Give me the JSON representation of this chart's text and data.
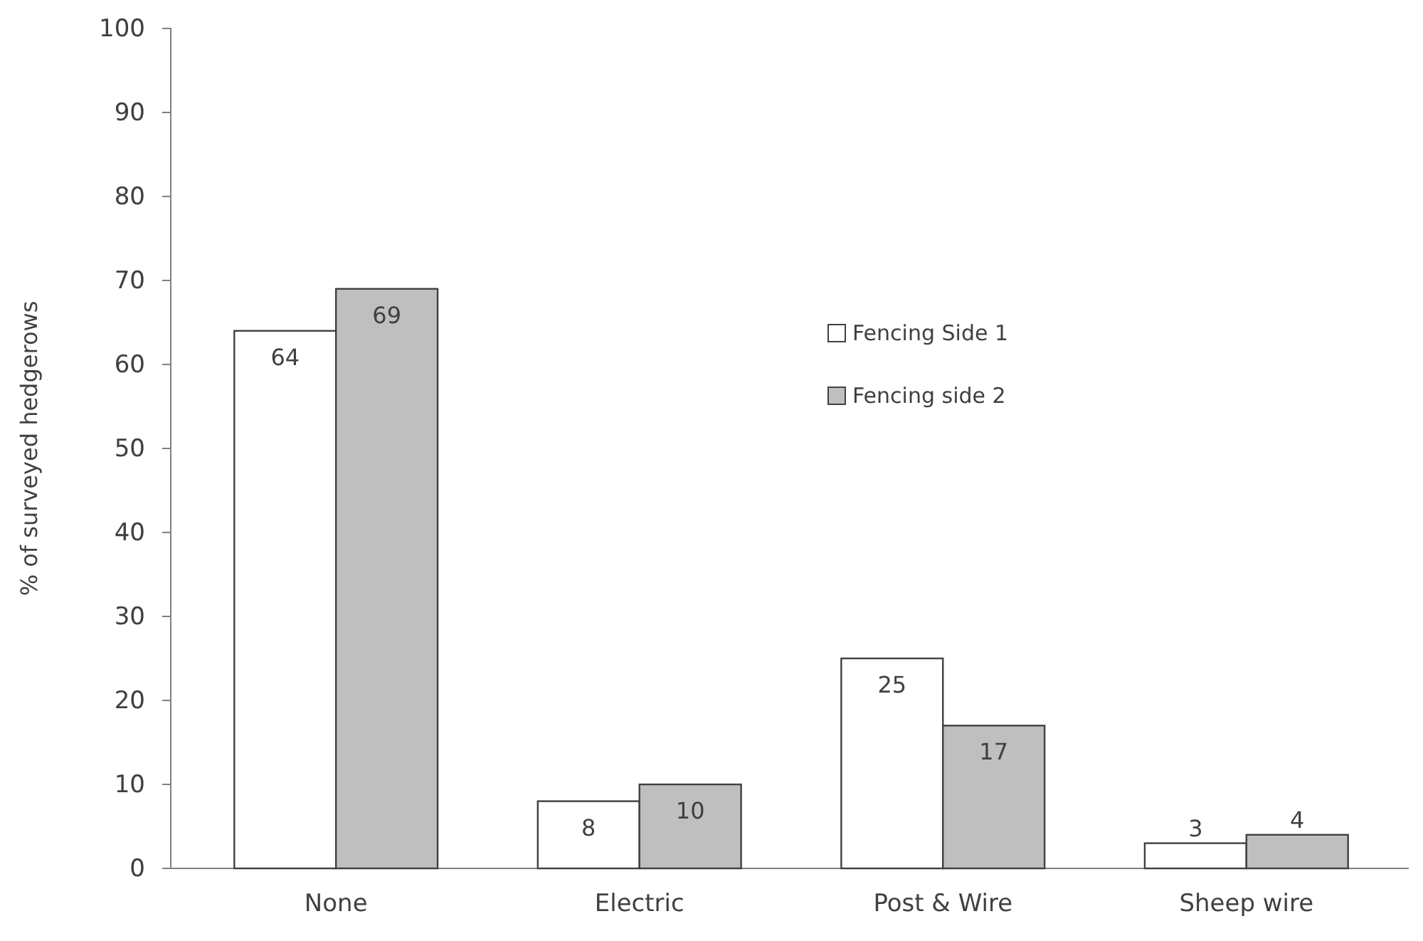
{
  "chart_data": {
    "type": "bar",
    "ylabel": "% of surveyed hedgerows",
    "categories": [
      "None",
      "Electric",
      "Post & Wire",
      "Sheep wire"
    ],
    "series": [
      {
        "name": "Fencing Side 1",
        "color": "#ffffff",
        "values": [
          64,
          8,
          25,
          3
        ]
      },
      {
        "name": "Fencing side 2",
        "color": "#bfbfbf",
        "values": [
          69,
          10,
          17,
          4
        ]
      }
    ],
    "ylim": [
      0,
      100
    ],
    "yticks": [
      0,
      10,
      20,
      30,
      40,
      50,
      60,
      70,
      80,
      90,
      100
    ],
    "data_labels": true,
    "legend": "center",
    "grid": false
  }
}
